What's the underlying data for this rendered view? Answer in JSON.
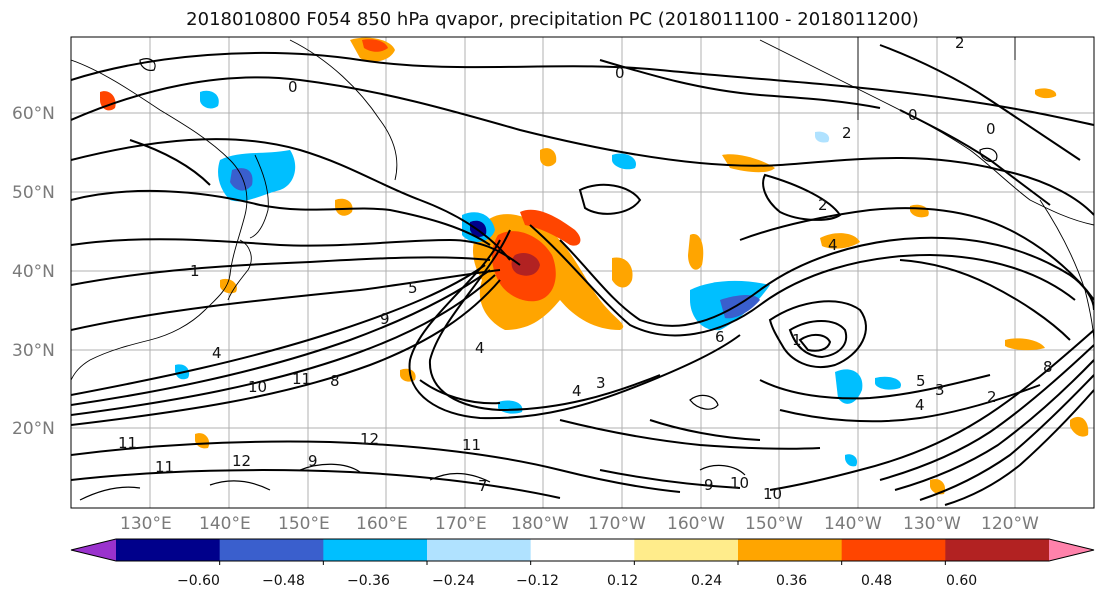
{
  "title": "2018010800 F054 850 hPa qvapor, precipitation PC (2018011100 - 2018011200)",
  "lat_labels": [
    "60°N",
    "50°N",
    "40°N",
    "30°N",
    "20°N"
  ],
  "lon_labels": [
    "130°E",
    "140°E",
    "150°E",
    "160°E",
    "170°E",
    "180°W",
    "170°W",
    "160°W",
    "150°W",
    "140°W",
    "130°W",
    "120°W"
  ],
  "colorbar": {
    "ticks": [
      "−0.60",
      "−0.48",
      "−0.36",
      "−0.24",
      "−0.12",
      "0.12",
      "0.24",
      "0.36",
      "0.48",
      "0.60"
    ],
    "colors": [
      "#9a32cd",
      "#00008b",
      "#3a5fcd",
      "#00bfff",
      "#b0e2ff",
      "#ffffff",
      "#ffec8b",
      "#ffa500",
      "#ff4500",
      "#b22222",
      "#ff82ab"
    ]
  },
  "contour_labels": [
    "0",
    "0",
    "0",
    "1",
    "2",
    "2",
    "2",
    "4",
    "4",
    "5",
    "9",
    "4",
    "6",
    "3",
    "4",
    "10",
    "11",
    "8",
    "11",
    "11",
    "12",
    "12",
    "9",
    "10",
    "10",
    "11",
    "4",
    "2",
    "0",
    "1",
    "3",
    "8",
    "9",
    "5",
    "7"
  ],
  "colors": {
    "land_line": "#000000",
    "grid": "#b0b0b0",
    "axis_text": "#7a7a7a"
  }
}
